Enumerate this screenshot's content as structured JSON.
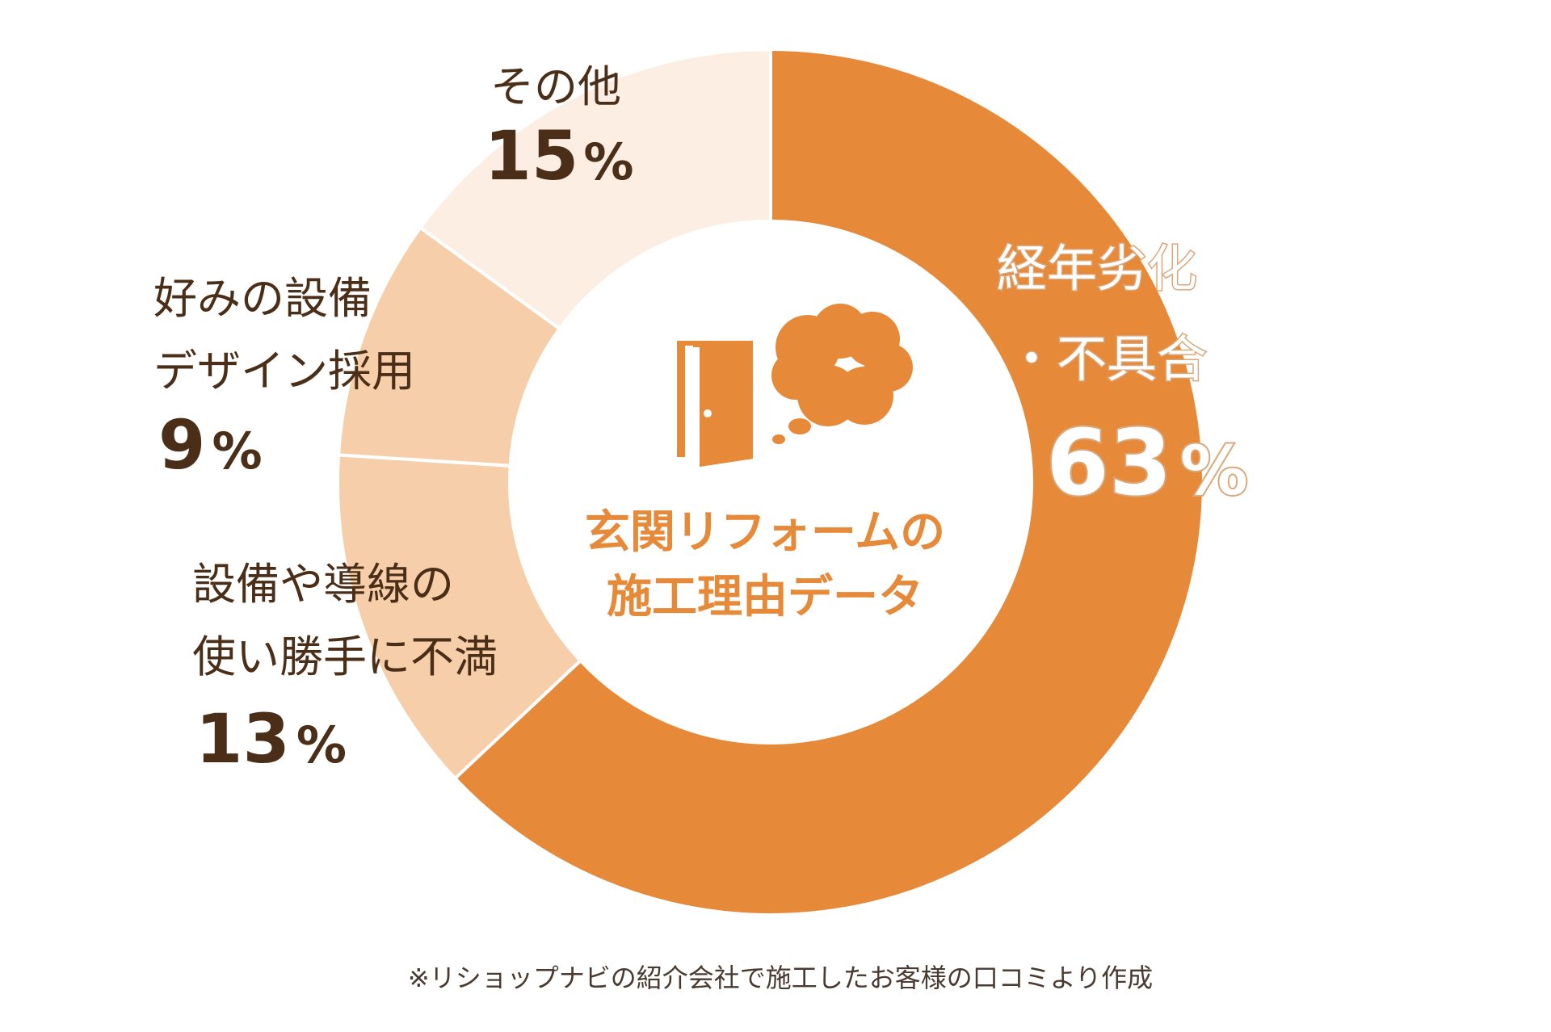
{
  "chart_data": {
    "type": "pie",
    "variant": "donut",
    "title": "玄関リフォームの施工理由データ",
    "title_lines": [
      "玄関リフォームの",
      "施工理由データ"
    ],
    "slices": [
      {
        "label_lines": [
          "経年劣化",
          "・不具合"
        ],
        "value": 63,
        "value_label": "63",
        "color": "#e68a3a"
      },
      {
        "label_lines": [
          "設備や導線の",
          "使い勝手に不満"
        ],
        "value": 13,
        "value_label": "13",
        "color": "#f6cfaa"
      },
      {
        "label_lines": [
          "好みの設備",
          "デザイン採用"
        ],
        "value": 9,
        "value_label": "9",
        "color": "#f6cfaa"
      },
      {
        "label_lines": [
          "その他"
        ],
        "value": 15,
        "value_label": "15",
        "color": "#fdeee3"
      }
    ],
    "unit": "%",
    "start": "top",
    "direction": "clockwise",
    "center_icon": "door-with-thought-cloud-icon",
    "footnote": "※リショップナビの紹介会社で施工したお客様の口コミより作成"
  }
}
